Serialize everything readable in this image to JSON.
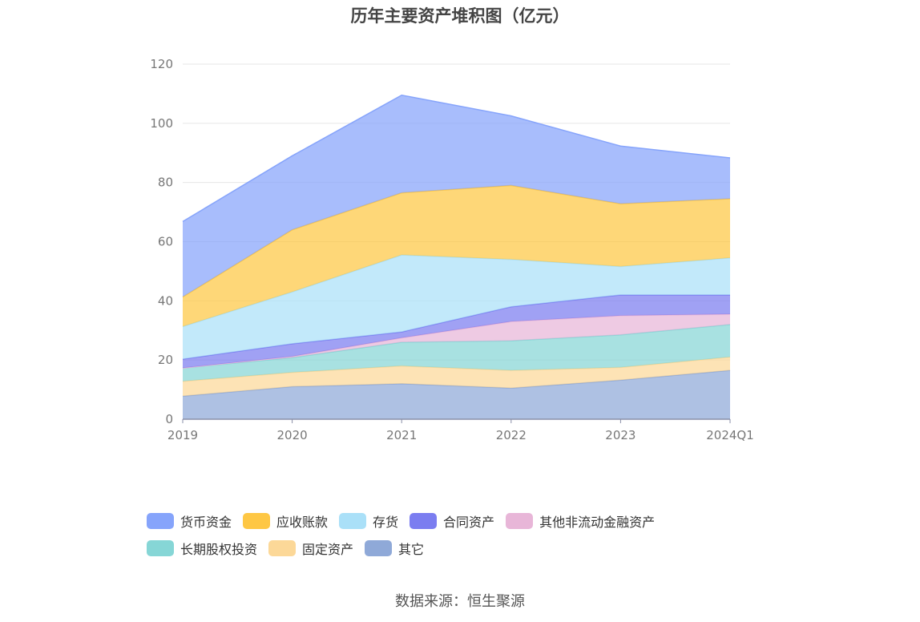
{
  "chart_data": {
    "type": "area",
    "stacked": true,
    "title": "历年主要资产堆积图（亿元）",
    "categories": [
      "2019",
      "2020",
      "2021",
      "2022",
      "2023",
      "2024Q1"
    ],
    "ylim": [
      0,
      120
    ],
    "yticks": [
      0,
      20,
      40,
      60,
      80,
      100,
      120
    ],
    "grid": true,
    "legend_position": "bottom",
    "series": [
      {
        "name": "其它",
        "color": "#8fa9d8",
        "values": [
          7.8,
          11,
          12,
          10.5,
          13.2,
          16.5
        ]
      },
      {
        "name": "固定资产",
        "color": "#fcd898",
        "values": [
          5.0,
          4.8,
          6.0,
          6.0,
          4.3,
          4.5
        ]
      },
      {
        "name": "长期股权投资",
        "color": "#86d6d6",
        "values": [
          4.5,
          5.0,
          8.0,
          10.0,
          11.0,
          11.0
        ]
      },
      {
        "name": "其他非流动金融资产",
        "color": "#e8b6d8",
        "values": [
          0,
          0.4,
          1.5,
          6.5,
          6.5,
          3.5
        ]
      },
      {
        "name": "合同资产",
        "color": "#7b7df0",
        "values": [
          3.0,
          4.3,
          2.0,
          5.0,
          7.0,
          6.5
        ]
      },
      {
        "name": "存货",
        "color": "#aae0f8",
        "values": [
          11.0,
          17.5,
          26.0,
          16.0,
          9.6,
          12.5
        ]
      },
      {
        "name": "应收账款",
        "color": "#fec744",
        "values": [
          10.0,
          21.0,
          21.0,
          25.0,
          21.2,
          20.0
        ]
      },
      {
        "name": "货币资金",
        "color": "#86a4fb",
        "values": [
          25.5,
          25.0,
          33.0,
          23.5,
          19.5,
          13.8
        ]
      }
    ]
  },
  "legend_order": [
    "货币资金",
    "应收账款",
    "存货",
    "合同资产",
    "其他非流动金融资产",
    "长期股权投资",
    "固定资产",
    "其它"
  ],
  "source": "数据来源：恒生聚源"
}
